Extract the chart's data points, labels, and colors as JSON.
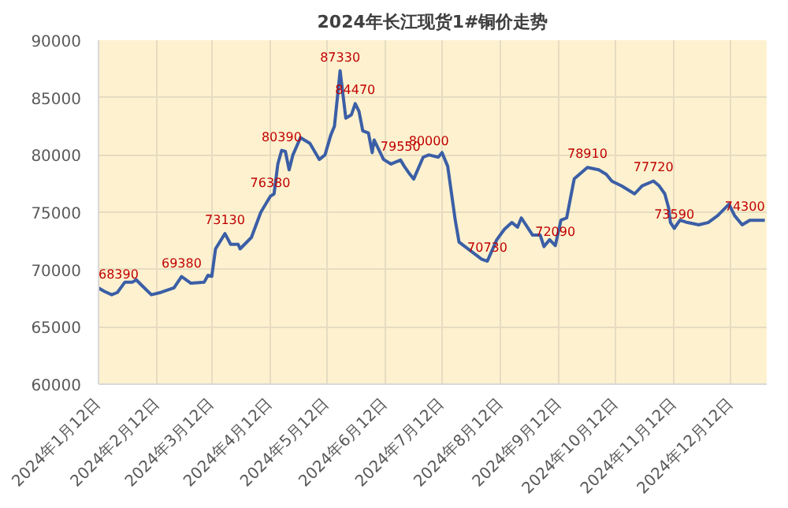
{
  "chart_data": {
    "type": "line",
    "title": "2024年长江现货1#铜价走势",
    "x": [
      "2024-01-12",
      "2024-01-15",
      "2024-01-19",
      "2024-01-22",
      "2024-01-26",
      "2024-01-30",
      "2024-02-01",
      "2024-02-04",
      "2024-02-09",
      "2024-02-14",
      "2024-02-21",
      "2024-02-25",
      "2024-03-01",
      "2024-03-08",
      "2024-03-10",
      "2024-03-12",
      "2024-03-14",
      "2024-03-19",
      "2024-03-22",
      "2024-03-26",
      "2024-03-27",
      "2024-04-02",
      "2024-04-07",
      "2024-04-12",
      "2024-04-14",
      "2024-04-16",
      "2024-04-18",
      "2024-04-20",
      "2024-04-22",
      "2024-04-24",
      "2024-04-28",
      "2024-05-03",
      "2024-05-08",
      "2024-05-11",
      "2024-05-14",
      "2024-05-16",
      "2024-05-19",
      "2024-05-22",
      "2024-05-25",
      "2024-05-27",
      "2024-05-29",
      "2024-05-31",
      "2024-06-03",
      "2024-06-05",
      "2024-06-06",
      "2024-06-11",
      "2024-06-15",
      "2024-06-20",
      "2024-06-22",
      "2024-06-25",
      "2024-06-27",
      "2024-07-02",
      "2024-07-05",
      "2024-07-10",
      "2024-07-12",
      "2024-07-15",
      "2024-07-19",
      "2024-07-21",
      "2024-08-02",
      "2024-08-05",
      "2024-08-10",
      "2024-08-14",
      "2024-08-18",
      "2024-08-21",
      "2024-08-23",
      "2024-08-29",
      "2024-09-02",
      "2024-09-04",
      "2024-09-07",
      "2024-09-10",
      "2024-09-13",
      "2024-09-16",
      "2024-09-20",
      "2024-09-27",
      "2024-10-03",
      "2024-10-07",
      "2024-10-10",
      "2024-10-15",
      "2024-10-22",
      "2024-10-26",
      "2024-11-01",
      "2024-11-04",
      "2024-11-07",
      "2024-11-09",
      "2024-11-10",
      "2024-11-12",
      "2024-11-15",
      "2024-11-19",
      "2024-11-25",
      "2024-11-30",
      "2024-12-05",
      "2024-12-11",
      "2024-12-14",
      "2024-12-18",
      "2024-12-22",
      "2024-12-30"
    ],
    "series": [
      {
        "color": "#3b5ea6",
        "values": [
          68390,
          68100,
          67800,
          68000,
          68900,
          68900,
          69100,
          68600,
          67800,
          68000,
          68400,
          69380,
          68800,
          68900,
          69500,
          69400,
          71800,
          73130,
          72200,
          72200,
          71800,
          72800,
          75000,
          76380,
          76600,
          79200,
          80390,
          80300,
          78700,
          80000,
          81500,
          81000,
          79600,
          80000,
          81700,
          82500,
          87330,
          83200,
          83500,
          84470,
          83800,
          82100,
          81900,
          80200,
          81300,
          79600,
          79200,
          79550,
          79000,
          78300,
          77900,
          79800,
          80000,
          79800,
          80200,
          79000,
          74300,
          72400,
          70900,
          70730,
          72600,
          73500,
          74100,
          73700,
          74500,
          73000,
          73000,
          72000,
          72600,
          72090,
          74300,
          74500,
          77900,
          78910,
          78700,
          78300,
          77700,
          77300,
          76600,
          77300,
          77720,
          77300,
          76600,
          75400,
          74100,
          73590,
          74300,
          74100,
          73900,
          74100,
          74700,
          75700,
          74700,
          73900,
          74300,
          74300
        ]
      }
    ],
    "xlim": [
      "2024-01-12",
      "2024-12-31"
    ],
    "xticks": [
      {
        "value": "2024-01-12",
        "label": "2024年1月12日"
      },
      {
        "value": "2024-02-12",
        "label": "2024年2月12日"
      },
      {
        "value": "2024-03-12",
        "label": "2024年3月12日"
      },
      {
        "value": "2024-04-12",
        "label": "2024年4月12日"
      },
      {
        "value": "2024-05-12",
        "label": "2024年5月12日"
      },
      {
        "value": "2024-06-12",
        "label": "2024年6月12日"
      },
      {
        "value": "2024-07-12",
        "label": "2024年7月12日"
      },
      {
        "value": "2024-08-12",
        "label": "2024年8月12日"
      },
      {
        "value": "2024-09-12",
        "label": "2024年9月12日"
      },
      {
        "value": "2024-10-12",
        "label": "2024年10月12日"
      },
      {
        "value": "2024-11-12",
        "label": "2024年11月12日"
      },
      {
        "value": "2024-12-12",
        "label": "2024年12月12日"
      }
    ],
    "ylim": [
      60000,
      90000
    ],
    "yticks": [
      60000,
      65000,
      70000,
      75000,
      80000,
      85000,
      90000
    ],
    "grid": true,
    "annotations": [
      {
        "text": "68390",
        "x": "2024-01-12",
        "y": 68390
      },
      {
        "text": "69380",
        "x": "2024-02-25",
        "y": 69380
      },
      {
        "text": "73130",
        "x": "2024-03-19",
        "y": 73130
      },
      {
        "text": "76380",
        "x": "2024-04-12",
        "y": 76380
      },
      {
        "text": "80390",
        "x": "2024-04-18",
        "y": 80390
      },
      {
        "text": "87330",
        "x": "2024-05-19",
        "y": 87330
      },
      {
        "text": "84470",
        "x": "2024-05-27",
        "y": 84470
      },
      {
        "text": "79550",
        "x": "2024-06-20",
        "y": 79550
      },
      {
        "text": "80000",
        "x": "2024-07-05",
        "y": 80000
      },
      {
        "text": "70730",
        "x": "2024-08-05",
        "y": 70730
      },
      {
        "text": "72090",
        "x": "2024-09-10",
        "y": 72090
      },
      {
        "text": "78910",
        "x": "2024-09-27",
        "y": 78910
      },
      {
        "text": "77720",
        "x": "2024-11-01",
        "y": 77720
      },
      {
        "text": "73590",
        "x": "2024-11-12",
        "y": 73590
      },
      {
        "text": "74300",
        "x": "2024-12-30",
        "y": 74300
      }
    ]
  }
}
